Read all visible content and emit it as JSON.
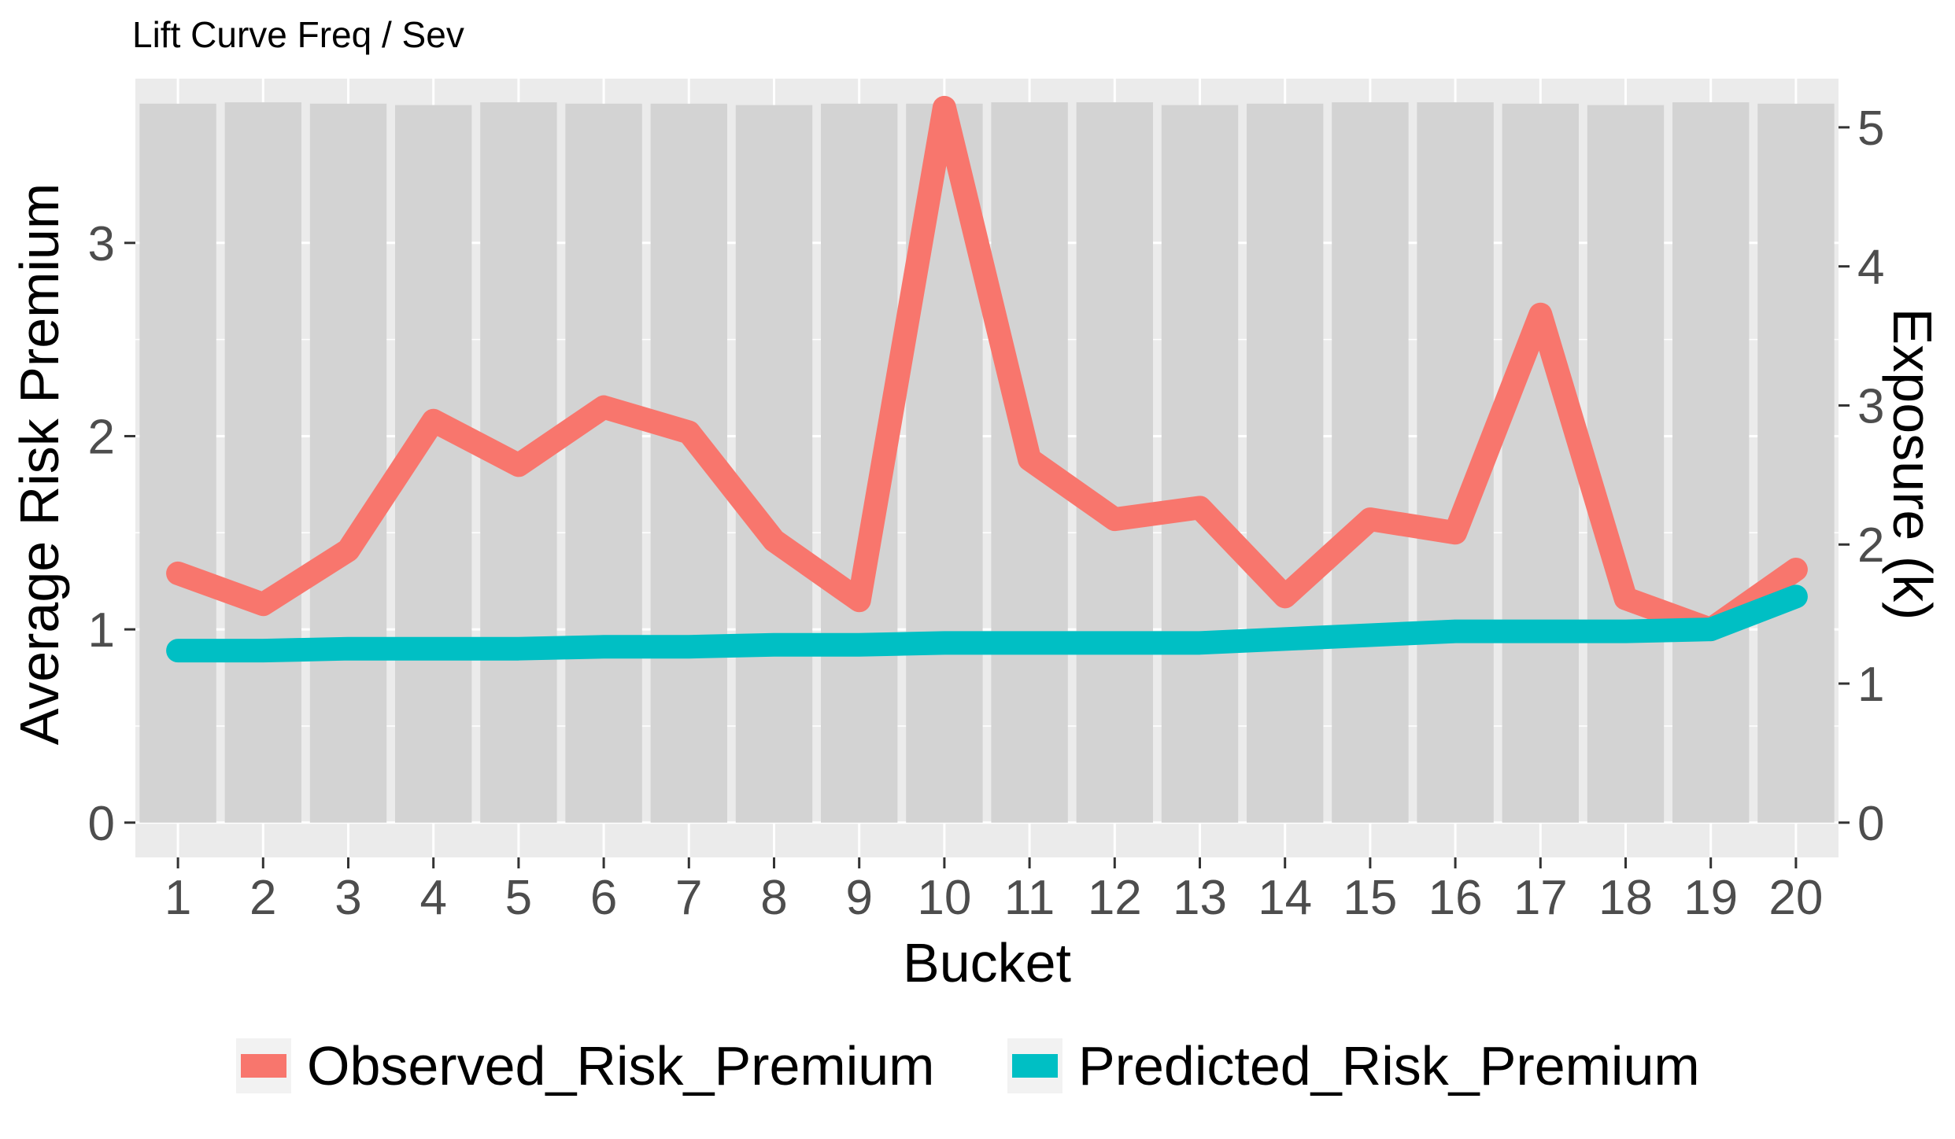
{
  "chart_data": {
    "type": "line",
    "title": "Lift Curve Freq / Sev",
    "xlabel": "Bucket",
    "ylabel": "Average Risk Premium",
    "y2label": "Exposure (k)",
    "categories": [
      "1",
      "2",
      "3",
      "4",
      "5",
      "6",
      "7",
      "8",
      "9",
      "10",
      "11",
      "12",
      "13",
      "14",
      "15",
      "16",
      "17",
      "18",
      "19",
      "20"
    ],
    "ylim": [
      -0.18,
      3.85
    ],
    "yticks": [
      "0",
      "1",
      "2",
      "3"
    ],
    "y2lim": [
      -0.25,
      5.35
    ],
    "y2ticks": [
      "0",
      "1",
      "2",
      "3",
      "4",
      "5"
    ],
    "bars": {
      "name": "Exposure (k)",
      "axis": "secondary",
      "color": "#d3d3d3",
      "values": [
        5.17,
        5.18,
        5.17,
        5.16,
        5.18,
        5.17,
        5.17,
        5.16,
        5.17,
        5.17,
        5.18,
        5.18,
        5.16,
        5.17,
        5.18,
        5.18,
        5.17,
        5.16,
        5.18,
        5.17
      ]
    },
    "series": [
      {
        "name": "Observed_Risk_Premium",
        "color": "#F8766D",
        "values": [
          1.29,
          1.13,
          1.41,
          2.08,
          1.85,
          2.15,
          2.02,
          1.46,
          1.15,
          3.7,
          1.88,
          1.57,
          1.63,
          1.17,
          1.57,
          1.5,
          2.63,
          1.16,
          1.0,
          1.31
        ]
      },
      {
        "name": "Predicted_Risk_Premium",
        "color": "#00BFC4",
        "values": [
          0.89,
          0.89,
          0.9,
          0.9,
          0.9,
          0.91,
          0.91,
          0.92,
          0.92,
          0.93,
          0.93,
          0.93,
          0.93,
          0.95,
          0.97,
          0.99,
          0.99,
          0.99,
          1.0,
          1.17
        ]
      }
    ],
    "grid": true,
    "legend_position": "bottom",
    "panel_background": "#ebebeb"
  }
}
